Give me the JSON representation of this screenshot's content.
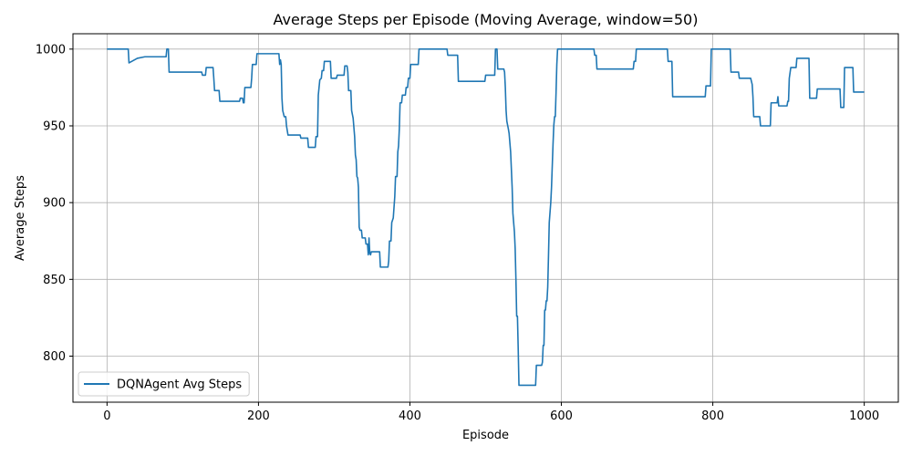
{
  "chart_data": {
    "type": "line",
    "title": "Average Steps per Episode (Moving Average, window=50)",
    "xlabel": "Episode",
    "ylabel": "Average Steps",
    "xlim": [
      -45,
      1045
    ],
    "ylim": [
      770,
      1010
    ],
    "xticks": [
      0,
      200,
      400,
      600,
      800,
      1000
    ],
    "yticks": [
      800,
      850,
      900,
      950,
      1000
    ],
    "grid": true,
    "legend_position": "lower-left",
    "series": [
      {
        "name": "DQNAgent Avg Steps",
        "color": "#1f77b4",
        "points": [
          [
            0,
            1000
          ],
          [
            28,
            1000
          ],
          [
            29,
            991
          ],
          [
            40,
            994
          ],
          [
            50,
            995
          ],
          [
            78,
            995
          ],
          [
            79,
            1000
          ],
          [
            81,
            1000
          ],
          [
            82,
            985
          ],
          [
            125,
            985
          ],
          [
            126,
            983
          ],
          [
            130,
            983
          ],
          [
            131,
            988
          ],
          [
            140,
            988
          ],
          [
            141,
            981
          ],
          [
            142,
            973
          ],
          [
            148,
            973
          ],
          [
            149,
            966
          ],
          [
            175,
            966
          ],
          [
            176,
            968
          ],
          [
            179,
            968
          ],
          [
            180,
            965
          ],
          [
            181,
            965
          ],
          [
            182,
            975
          ],
          [
            190,
            975
          ],
          [
            191,
            981
          ],
          [
            192,
            990
          ],
          [
            197,
            990
          ],
          [
            198,
            997
          ],
          [
            227,
            997
          ],
          [
            228,
            990
          ],
          [
            229,
            993
          ],
          [
            230,
            990
          ],
          [
            231,
            968
          ],
          [
            232,
            960
          ],
          [
            234,
            956
          ],
          [
            236,
            956
          ],
          [
            237,
            950
          ],
          [
            239,
            944
          ],
          [
            255,
            944
          ],
          [
            256,
            942
          ],
          [
            265,
            942
          ],
          [
            266,
            936
          ],
          [
            275,
            936
          ],
          [
            276,
            943
          ],
          [
            278,
            943
          ],
          [
            279,
            970
          ],
          [
            281,
            980
          ],
          [
            283,
            981
          ],
          [
            284,
            986
          ],
          [
            286,
            986
          ],
          [
            287,
            992
          ],
          [
            295,
            992
          ],
          [
            296,
            981
          ],
          [
            303,
            981
          ],
          [
            304,
            983
          ],
          [
            313,
            983
          ],
          [
            314,
            989
          ],
          [
            317,
            989
          ],
          [
            318,
            985
          ],
          [
            319,
            973
          ],
          [
            322,
            973
          ],
          [
            323,
            960
          ],
          [
            325,
            955
          ],
          [
            327,
            943
          ],
          [
            328,
            931
          ],
          [
            329,
            928
          ],
          [
            330,
            917
          ],
          [
            331,
            916
          ],
          [
            332,
            910
          ],
          [
            333,
            884
          ],
          [
            334,
            882
          ],
          [
            336,
            882
          ],
          [
            337,
            877
          ],
          [
            341,
            877
          ],
          [
            342,
            873
          ],
          [
            344,
            873
          ],
          [
            345,
            866
          ],
          [
            346,
            877
          ],
          [
            347,
            867
          ],
          [
            348,
            866
          ],
          [
            349,
            868
          ],
          [
            360,
            868
          ],
          [
            361,
            858
          ],
          [
            371,
            858
          ],
          [
            372,
            862
          ],
          [
            373,
            875
          ],
          [
            375,
            875
          ],
          [
            376,
            887
          ],
          [
            378,
            890
          ],
          [
            380,
            904
          ],
          [
            381,
            917
          ],
          [
            383,
            917
          ],
          [
            384,
            933
          ],
          [
            385,
            937
          ],
          [
            386,
            948
          ],
          [
            387,
            965
          ],
          [
            389,
            965
          ],
          [
            390,
            970
          ],
          [
            394,
            970
          ],
          [
            395,
            975
          ],
          [
            397,
            975
          ],
          [
            398,
            981
          ],
          [
            400,
            981
          ],
          [
            401,
            990
          ],
          [
            411,
            990
          ],
          [
            412,
            1000
          ],
          [
            449,
            1000
          ],
          [
            450,
            996
          ],
          [
            463,
            996
          ],
          [
            464,
            979
          ],
          [
            499,
            979
          ],
          [
            500,
            983
          ],
          [
            512,
            983
          ],
          [
            513,
            1000
          ],
          [
            515,
            1000
          ],
          [
            516,
            987
          ],
          [
            524,
            987
          ],
          [
            525,
            985
          ],
          [
            526,
            975
          ],
          [
            527,
            960
          ],
          [
            528,
            953
          ],
          [
            530,
            948
          ],
          [
            531,
            945
          ],
          [
            533,
            933
          ],
          [
            535,
            910
          ],
          [
            536,
            893
          ],
          [
            538,
            881
          ],
          [
            539,
            870
          ],
          [
            540,
            850
          ],
          [
            541,
            826
          ],
          [
            542,
            826
          ],
          [
            543,
            805
          ],
          [
            544,
            781
          ],
          [
            566,
            781
          ],
          [
            567,
            794
          ],
          [
            574,
            794
          ],
          [
            575,
            796
          ],
          [
            576,
            807
          ],
          [
            577,
            807
          ],
          [
            578,
            830
          ],
          [
            579,
            830
          ],
          [
            580,
            836
          ],
          [
            581,
            836
          ],
          [
            582,
            845
          ],
          [
            583,
            865
          ],
          [
            584,
            887
          ],
          [
            586,
            900
          ],
          [
            587,
            910
          ],
          [
            589,
            938
          ],
          [
            590,
            950
          ],
          [
            591,
            956
          ],
          [
            592,
            956
          ],
          [
            593,
            972
          ],
          [
            594,
            990
          ],
          [
            595,
            1000
          ],
          [
            643,
            1000
          ],
          [
            644,
            996
          ],
          [
            646,
            996
          ],
          [
            647,
            987
          ],
          [
            695,
            987
          ],
          [
            696,
            992
          ],
          [
            698,
            992
          ],
          [
            699,
            1000
          ],
          [
            740,
            1000
          ],
          [
            741,
            992
          ],
          [
            746,
            992
          ],
          [
            747,
            969
          ],
          [
            790,
            969
          ],
          [
            791,
            976
          ],
          [
            797,
            976
          ],
          [
            798,
            1000
          ],
          [
            823,
            1000
          ],
          [
            824,
            985
          ],
          [
            834,
            985
          ],
          [
            835,
            981
          ],
          [
            850,
            981
          ],
          [
            851,
            979
          ],
          [
            852,
            977
          ],
          [
            853,
            969
          ],
          [
            854,
            956
          ],
          [
            862,
            956
          ],
          [
            863,
            950
          ],
          [
            876,
            950
          ],
          [
            877,
            965
          ],
          [
            885,
            965
          ],
          [
            886,
            969
          ],
          [
            887,
            963
          ],
          [
            898,
            963
          ],
          [
            899,
            966
          ],
          [
            900,
            966
          ],
          [
            901,
            981
          ],
          [
            903,
            988
          ],
          [
            910,
            988
          ],
          [
            911,
            994
          ],
          [
            927,
            994
          ],
          [
            928,
            968
          ],
          [
            937,
            968
          ],
          [
            938,
            974
          ],
          [
            968,
            974
          ],
          [
            969,
            962
          ],
          [
            973,
            962
          ],
          [
            974,
            988
          ],
          [
            985,
            988
          ],
          [
            986,
            972
          ],
          [
            1000,
            972
          ]
        ]
      }
    ]
  }
}
